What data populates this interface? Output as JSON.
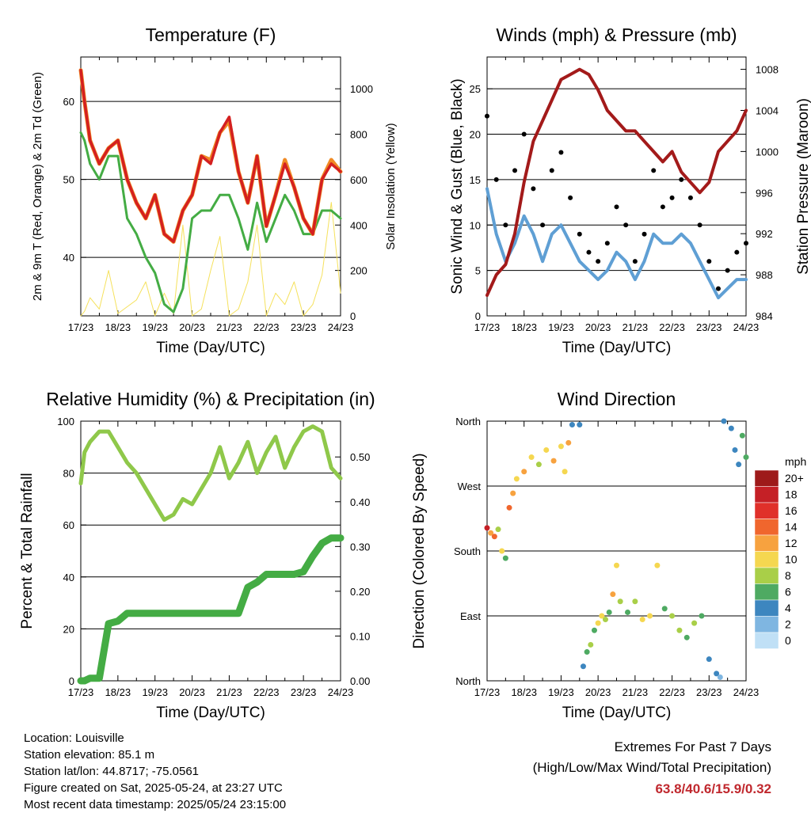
{
  "x_ticks": [
    "17/23",
    "18/23",
    "19/23",
    "20/23",
    "21/23",
    "22/23",
    "23/23",
    "24/23"
  ],
  "x_label": "Time (Day/UTC)",
  "chart_data": [
    {
      "id": "temperature",
      "type": "line",
      "title": "Temperature (F)",
      "ylabel": "2m & 9m T (Red, Orange) & 2m Td (Green)",
      "y2label": "Solar Insolation (Yellow)",
      "ylim": [
        32.5,
        65.7
      ],
      "y_ticks": [
        40,
        50,
        60
      ],
      "y2lim": [
        0,
        1140
      ],
      "y2_ticks": [
        0,
        200,
        400,
        600,
        800,
        1000
      ],
      "x": [
        0,
        0.1,
        0.25,
        0.5,
        0.75,
        1,
        1.25,
        1.5,
        1.75,
        2,
        2.25,
        2.5,
        2.75,
        3,
        3.25,
        3.5,
        3.75,
        4,
        4.25,
        4.5,
        4.75,
        5,
        5.25,
        5.5,
        5.75,
        6,
        6.25,
        6.5,
        6.75,
        7
      ],
      "series": [
        {
          "color": "#d42020",
          "values": [
            64,
            60,
            55,
            52,
            54,
            55,
            50,
            47,
            45,
            48,
            43,
            42,
            46,
            48,
            53,
            52,
            56,
            58,
            51,
            47,
            53,
            44,
            48,
            52,
            49,
            45,
            43,
            50,
            52,
            51
          ]
        },
        {
          "color": "#f08a24",
          "values": [
            64,
            60,
            55,
            52,
            54,
            55,
            50,
            47,
            45,
            48,
            43,
            42,
            46,
            48,
            53,
            52.5,
            56,
            57.5,
            51,
            47,
            53,
            44,
            48,
            52.5,
            49,
            45,
            43,
            50,
            52.5,
            51
          ]
        },
        {
          "color": "#44ac44",
          "values": [
            56,
            55,
            52,
            50,
            53,
            53,
            45,
            43,
            40,
            38,
            34,
            33,
            36,
            45,
            46,
            46,
            48,
            48,
            45,
            41,
            47,
            42,
            45,
            48,
            46,
            43,
            43,
            46,
            46,
            45
          ]
        },
        {
          "color": "#f5e15c",
          "values": [
            0,
            20,
            80,
            30,
            200,
            10,
            40,
            70,
            150,
            0,
            100,
            10,
            400,
            0,
            30,
            200,
            350,
            0,
            30,
            150,
            400,
            0,
            100,
            50,
            150,
            0,
            50,
            180,
            500,
            100
          ]
        }
      ]
    },
    {
      "id": "winds",
      "type": "scatter",
      "title": "Winds (mph) & Pressure (mb)",
      "ylabel": "Sonic Wind & Gust (Blue, Black)",
      "y2label": "Station Pressure (Maroon)",
      "ylim": [
        0,
        28.5
      ],
      "y_ticks": [
        0,
        5,
        10,
        15,
        20,
        25
      ],
      "y2lim": [
        984,
        1009.2
      ],
      "y2_ticks": [
        984,
        988,
        992,
        996,
        1000,
        1004,
        1008
      ],
      "x": [
        0,
        0.25,
        0.5,
        0.75,
        1,
        1.25,
        1.5,
        1.75,
        2,
        2.25,
        2.5,
        2.75,
        3,
        3.25,
        3.5,
        3.75,
        4,
        4.25,
        4.5,
        4.75,
        5,
        5.25,
        5.5,
        5.75,
        6,
        6.25,
        6.5,
        6.75,
        7
      ],
      "series": [
        {
          "color": "#000000",
          "values": [
            22,
            15,
            10,
            16,
            20,
            14,
            10,
            16,
            18,
            13,
            9,
            7,
            6,
            8,
            12,
            10,
            6,
            9,
            16,
            12,
            13,
            15,
            13,
            10,
            6,
            3,
            5,
            7,
            8
          ]
        },
        {
          "color": "#5f9fd4",
          "values": [
            14,
            9,
            6,
            8,
            11,
            9,
            6,
            9,
            10,
            8,
            6,
            5,
            4,
            5,
            7,
            6,
            4,
            6,
            9,
            8,
            8,
            9,
            8,
            6,
            4,
            2,
            3,
            4,
            4
          ]
        },
        {
          "color": "#a31a1a",
          "values": [
            986,
            988,
            989,
            992,
            997,
            1001,
            1003,
            1005,
            1007,
            1007.5,
            1008,
            1007.5,
            1006,
            1004,
            1003,
            1002,
            1002,
            1001,
            1000,
            999,
            1000,
            998,
            997,
            996,
            997,
            1000,
            1001,
            1002,
            1004
          ]
        }
      ]
    },
    {
      "id": "humidity",
      "type": "line",
      "title": "Relative Humidity (%) & Precipitation (in)",
      "ylabel": "Percent & Total Rainfall",
      "ylim": [
        0,
        100
      ],
      "y_ticks": [
        0,
        20,
        40,
        60,
        80,
        100
      ],
      "y2lim": [
        0,
        0.58
      ],
      "y2_ticks": [
        "0.00",
        "0.10",
        "0.20",
        "0.30",
        "0.40",
        "0.50"
      ],
      "x": [
        0,
        0.1,
        0.25,
        0.5,
        0.75,
        1,
        1.25,
        1.5,
        1.75,
        2,
        2.25,
        2.5,
        2.75,
        3,
        3.25,
        3.5,
        3.75,
        4,
        4.25,
        4.5,
        4.75,
        5,
        5.25,
        5.5,
        5.75,
        6,
        6.25,
        6.5,
        6.75,
        7
      ],
      "series": [
        {
          "color": "#8fc84a",
          "values": [
            76,
            88,
            92,
            96,
            96,
            90,
            84,
            80,
            74,
            68,
            62,
            64,
            70,
            68,
            74,
            80,
            90,
            78,
            84,
            92,
            80,
            88,
            94,
            82,
            90,
            96,
            98,
            96,
            82,
            78
          ]
        },
        {
          "color": "#44ac44",
          "values": [
            0,
            0,
            1,
            1,
            22,
            23,
            26,
            26,
            26,
            26,
            26,
            26,
            26,
            26,
            26,
            26,
            26,
            26,
            26,
            36,
            38,
            41,
            41,
            41,
            41,
            42,
            48,
            53,
            55,
            55
          ]
        }
      ]
    },
    {
      "id": "direction",
      "type": "scatter",
      "title": "Wind Direction",
      "ylabel": "Direction (Colored By Speed)",
      "y_ticks": [
        "North",
        "East",
        "South",
        "West",
        "North"
      ],
      "ylim": [
        0,
        360
      ],
      "x": [
        0,
        0.1,
        0.2,
        0.3,
        0.4,
        0.5,
        0.6,
        0.7,
        0.8,
        1,
        1.2,
        1.4,
        1.6,
        1.8,
        2,
        2.1,
        2.2,
        2.3,
        2.5,
        2.6,
        2.7,
        2.8,
        2.9,
        3,
        3.1,
        3.2,
        3.3,
        3.4,
        3.5,
        3.6,
        3.8,
        4,
        4.2,
        4.4,
        4.6,
        4.8,
        5,
        5.2,
        5.4,
        5.6,
        5.8,
        6,
        6.2,
        6.3,
        6.4,
        6.6,
        6.7,
        6.8,
        6.9,
        7
      ],
      "values": [
        212,
        205,
        200,
        210,
        180,
        170,
        240,
        260,
        280,
        290,
        310,
        300,
        320,
        305,
        325,
        290,
        330,
        355,
        355,
        20,
        40,
        50,
        70,
        80,
        90,
        85,
        95,
        120,
        160,
        110,
        95,
        110,
        85,
        90,
        160,
        100,
        90,
        70,
        60,
        80,
        90,
        30,
        10,
        5,
        360,
        350,
        320,
        300,
        340,
        310
      ],
      "speeds": [
        18,
        12,
        14,
        8,
        10,
        6,
        13,
        11,
        10,
        12,
        10,
        8,
        9,
        11,
        10,
        9,
        12,
        4,
        3,
        4,
        6,
        8,
        6,
        9,
        10,
        8,
        6,
        12,
        9,
        7,
        6,
        8,
        9,
        10,
        9,
        6,
        8,
        7,
        6,
        8,
        6,
        4,
        3,
        2,
        3,
        4,
        3,
        4,
        6,
        5
      ],
      "legend_title": "mph",
      "legend_labels": [
        "20+",
        "18",
        "16",
        "14",
        "12",
        "10",
        "8",
        "6",
        "4",
        "2",
        "0"
      ],
      "legend_colors": [
        "#9e1a1a",
        "#c52026",
        "#e0302a",
        "#f0662d",
        "#f7a23f",
        "#f5d750",
        "#a9cf48",
        "#4eaa62",
        "#3d86bf",
        "#7fb6e1",
        "#c0e0f6"
      ]
    }
  ],
  "footer": {
    "location": "Location: Louisville",
    "elevation": "Station elevation: 85.1 m",
    "latlon": "Station lat/lon: 44.8717; -75.0561",
    "created": "Figure created on Sat, 2025-05-24, at 23:27 UTC",
    "recent": "Most recent data timestamp: 2025/05/24 23:15:00"
  },
  "extremes": {
    "title": "Extremes For Past 7 Days",
    "subtitle": "(High/Low/Max Wind/Total Precipitation)",
    "values": "63.8/40.6/15.9/0.32",
    "values_color": "#c0282e"
  }
}
